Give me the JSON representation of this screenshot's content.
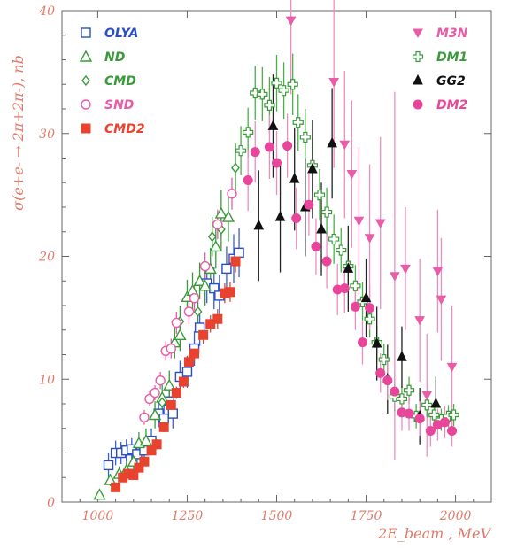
{
  "chart_data": {
    "type": "scatter",
    "xlabel": "2E_beam , MeV",
    "ylabel": "σ(e+e- → 2π+2π-), nb",
    "xlim": [
      900,
      2100
    ],
    "ylim": [
      0,
      40
    ],
    "x_ticks": [
      "1000",
      "1250",
      "1500",
      "1750",
      "2000"
    ],
    "y_ticks": [
      "0",
      "10",
      "20",
      "30",
      "40"
    ],
    "legend_left": [
      "OLYA",
      "ND",
      "CMD",
      "SND",
      "CMD2"
    ],
    "legend_right": [
      "M3N",
      "DM1",
      "GG2",
      "DM2"
    ],
    "series": [
      {
        "name": "OLYA",
        "marker": "open-square",
        "color": "#2a4fc4",
        "points": [
          [
            1030,
            3.0,
            1.0
          ],
          [
            1050,
            4.0,
            1.0
          ],
          [
            1065,
            4.0,
            0.9
          ],
          [
            1080,
            4.2,
            0.9
          ],
          [
            1095,
            4.3,
            0.9
          ],
          [
            1110,
            3.9,
            0.9
          ],
          [
            1130,
            4.2,
            1.0
          ],
          [
            1150,
            5.0,
            1.0
          ],
          [
            1170,
            7.2,
            1.1
          ],
          [
            1185,
            6.8,
            1.1
          ],
          [
            1200,
            8.2,
            1.2
          ],
          [
            1210,
            7.2,
            1.2
          ],
          [
            1230,
            10.2,
            1.3
          ],
          [
            1250,
            10.6,
            1.3
          ],
          [
            1270,
            12.5,
            1.4
          ],
          [
            1285,
            14.2,
            1.5
          ],
          [
            1305,
            17.8,
            1.6
          ],
          [
            1325,
            17.4,
            1.7
          ],
          [
            1340,
            16.8,
            1.7
          ],
          [
            1360,
            19.0,
            1.8
          ],
          [
            1380,
            19.8,
            2.0
          ],
          [
            1395,
            20.3,
            2.0
          ]
        ]
      },
      {
        "name": "ND",
        "marker": "open-triangle",
        "color": "#3a9a3a",
        "points": [
          [
            1005,
            0.6,
            0.4
          ],
          [
            1035,
            1.8,
            0.5
          ],
          [
            1060,
            2.3,
            0.6
          ],
          [
            1080,
            2.6,
            0.7
          ],
          [
            1100,
            3.3,
            0.8
          ],
          [
            1115,
            4.8,
            0.9
          ],
          [
            1135,
            5.0,
            1.0
          ],
          [
            1160,
            7.1,
            1.1
          ],
          [
            1180,
            8.5,
            1.1
          ],
          [
            1200,
            9.5,
            1.2
          ],
          [
            1215,
            13.0,
            1.3
          ],
          [
            1230,
            13.6,
            1.3
          ],
          [
            1250,
            16.7,
            1.4
          ],
          [
            1265,
            17.2,
            1.5
          ],
          [
            1285,
            18.0,
            1.5
          ],
          [
            1300,
            17.6,
            1.6
          ],
          [
            1315,
            19.0,
            1.7
          ],
          [
            1330,
            20.8,
            1.8
          ],
          [
            1345,
            23.5,
            1.9
          ],
          [
            1365,
            23.2,
            2.0
          ]
        ]
      },
      {
        "name": "CMD",
        "marker": "open-diamond",
        "color": "#3a9a3a",
        "points": [
          [
            1180,
            8.1,
            1.0
          ],
          [
            1230,
            14.7,
            1.3
          ],
          [
            1280,
            15.5,
            1.4
          ],
          [
            1320,
            21.6,
            1.6
          ],
          [
            1345,
            22.2,
            1.8
          ],
          [
            1385,
            27.2,
            2.0
          ]
        ]
      },
      {
        "name": "SND",
        "marker": "open-circle",
        "color": "#e85ca8",
        "points": [
          [
            1130,
            6.9,
            0.6
          ],
          [
            1145,
            8.4,
            0.6
          ],
          [
            1160,
            8.9,
            0.6
          ],
          [
            1175,
            9.9,
            0.7
          ],
          [
            1190,
            12.3,
            0.8
          ],
          [
            1205,
            12.5,
            0.8
          ],
          [
            1220,
            14.6,
            0.9
          ],
          [
            1255,
            15.5,
            1.0
          ],
          [
            1270,
            16.6,
            1.0
          ],
          [
            1300,
            19.2,
            1.1
          ],
          [
            1335,
            22.6,
            1.2
          ],
          [
            1375,
            25.1,
            1.3
          ]
        ]
      },
      {
        "name": "CMD2",
        "marker": "filled-square",
        "color": "#e8432f",
        "points": [
          [
            1050,
            1.2,
            0.3
          ],
          [
            1070,
            2.0,
            0.3
          ],
          [
            1085,
            2.3,
            0.3
          ],
          [
            1100,
            2.2,
            0.3
          ],
          [
            1115,
            2.8,
            0.3
          ],
          [
            1130,
            3.3,
            0.3
          ],
          [
            1150,
            4.2,
            0.4
          ],
          [
            1165,
            4.7,
            0.4
          ],
          [
            1185,
            6.1,
            0.4
          ],
          [
            1205,
            7.9,
            0.5
          ],
          [
            1220,
            8.9,
            0.5
          ],
          [
            1240,
            9.8,
            0.5
          ],
          [
            1255,
            11.4,
            0.6
          ],
          [
            1270,
            12.1,
            0.6
          ],
          [
            1295,
            13.6,
            0.7
          ],
          [
            1315,
            14.5,
            0.7
          ],
          [
            1335,
            14.9,
            0.8
          ],
          [
            1355,
            17.0,
            0.8
          ],
          [
            1370,
            17.1,
            0.8
          ],
          [
            1385,
            19.6,
            0.9
          ]
        ]
      },
      {
        "name": "M3N",
        "marker": "filled-down-triangle",
        "color": "#e85ca8",
        "points": [
          [
            1540,
            39.2,
            6.0
          ],
          [
            1660,
            34.2,
            7.0
          ],
          [
            1690,
            29.1,
            6.0
          ],
          [
            1710,
            26.7,
            6.0
          ],
          [
            1730,
            22.9,
            6.0
          ],
          [
            1760,
            21.5,
            6.0
          ],
          [
            1790,
            22.7,
            7.0
          ],
          [
            1830,
            18.4,
            15.0
          ],
          [
            1860,
            19.0,
            5.0
          ],
          [
            1900,
            14.8,
            5.0
          ],
          [
            1920,
            8.7,
            5.0
          ],
          [
            1950,
            18.8,
            5.0
          ],
          [
            1960,
            16.5,
            5.0
          ],
          [
            1990,
            11.0,
            5.0
          ]
        ]
      },
      {
        "name": "DM1",
        "marker": "open-cross",
        "color": "#3a9a3a",
        "points": [
          [
            1400,
            28.6,
            2.0
          ],
          [
            1420,
            30.1,
            2.0
          ],
          [
            1440,
            33.3,
            2.2
          ],
          [
            1460,
            33.2,
            2.2
          ],
          [
            1480,
            32.3,
            2.3
          ],
          [
            1500,
            34.1,
            2.3
          ],
          [
            1520,
            33.5,
            2.3
          ],
          [
            1545,
            34.0,
            2.5
          ],
          [
            1560,
            30.9,
            2.3
          ],
          [
            1580,
            29.7,
            2.3
          ],
          [
            1600,
            27.4,
            2.2
          ],
          [
            1620,
            25.0,
            2.1
          ],
          [
            1640,
            23.6,
            2.0
          ],
          [
            1660,
            21.4,
            2.0
          ],
          [
            1680,
            20.5,
            1.8
          ],
          [
            1700,
            19.2,
            1.8
          ],
          [
            1720,
            17.6,
            1.7
          ],
          [
            1740,
            16.3,
            1.6
          ],
          [
            1760,
            14.9,
            1.5
          ],
          [
            1780,
            13.0,
            1.4
          ],
          [
            1800,
            11.6,
            1.3
          ],
          [
            1830,
            8.6,
            1.2
          ],
          [
            1850,
            8.4,
            1.1
          ],
          [
            1870,
            9.1,
            1.1
          ],
          [
            1890,
            7.0,
            1.0
          ],
          [
            1920,
            7.9,
            1.0
          ],
          [
            1940,
            7.1,
            1.0
          ],
          [
            1960,
            6.7,
            0.9
          ],
          [
            1980,
            7.0,
            0.9
          ],
          [
            1995,
            7.1,
            0.9
          ]
        ]
      },
      {
        "name": "GG2",
        "marker": "filled-triangle",
        "color": "#111111",
        "points": [
          [
            1450,
            22.5,
            4.5
          ],
          [
            1490,
            30.6,
            4.2
          ],
          [
            1510,
            23.2,
            4.5
          ],
          [
            1550,
            26.3,
            4.2
          ],
          [
            1580,
            24.0,
            4.0
          ],
          [
            1600,
            27.1,
            4.0
          ],
          [
            1625,
            22.2,
            3.8
          ],
          [
            1655,
            29.2,
            4.5
          ],
          [
            1700,
            19.0,
            3.5
          ],
          [
            1750,
            16.6,
            3.2
          ],
          [
            1780,
            12.9,
            3.0
          ],
          [
            1810,
            10.0,
            2.8
          ],
          [
            1850,
            11.8,
            2.5
          ],
          [
            1900,
            7.0,
            2.3
          ],
          [
            1945,
            8.0,
            2.2
          ]
        ]
      },
      {
        "name": "DM2",
        "marker": "filled-circle",
        "color": "#e8469a",
        "points": [
          [
            1420,
            26.2,
            2.5
          ],
          [
            1440,
            28.5,
            2.5
          ],
          [
            1480,
            28.9,
            2.6
          ],
          [
            1500,
            27.6,
            2.6
          ],
          [
            1530,
            29.0,
            2.6
          ],
          [
            1555,
            23.1,
            2.5
          ],
          [
            1590,
            24.2,
            2.5
          ],
          [
            1610,
            20.8,
            2.3
          ],
          [
            1640,
            19.6,
            2.2
          ],
          [
            1670,
            17.3,
            2.1
          ],
          [
            1690,
            17.4,
            2.0
          ],
          [
            1720,
            15.9,
            1.9
          ],
          [
            1740,
            13.0,
            1.8
          ],
          [
            1760,
            15.8,
            1.8
          ],
          [
            1790,
            10.5,
            1.6
          ],
          [
            1810,
            9.9,
            1.6
          ],
          [
            1830,
            9.0,
            1.5
          ],
          [
            1850,
            7.3,
            1.5
          ],
          [
            1870,
            7.2,
            1.4
          ],
          [
            1900,
            6.8,
            1.4
          ],
          [
            1930,
            5.8,
            1.3
          ],
          [
            1950,
            6.3,
            1.3
          ],
          [
            1970,
            6.5,
            1.3
          ],
          [
            1990,
            5.8,
            1.3
          ]
        ]
      }
    ]
  }
}
